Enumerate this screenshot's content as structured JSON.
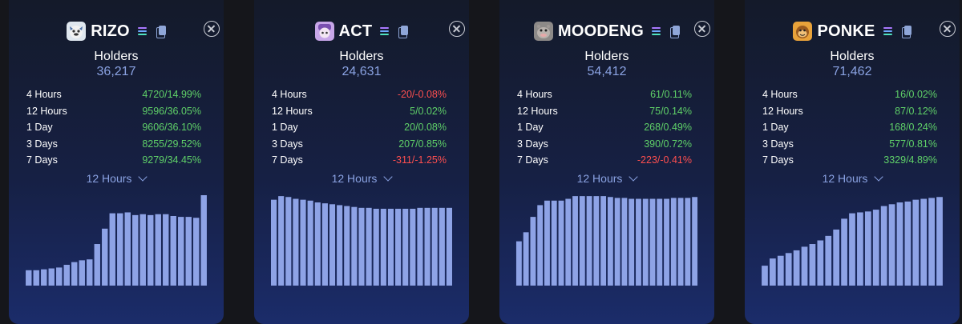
{
  "cards": [
    {
      "ticker": "RIZO",
      "avatar": {
        "icon": "dog-face-icon",
        "color": "#dfe7ef"
      },
      "holders_label": "Holders",
      "holders_value": "36,217",
      "stats": [
        {
          "label": "4 Hours",
          "value": "4720/14.99%",
          "trend": "pos"
        },
        {
          "label": "12 Hours",
          "value": "9596/36.05%",
          "trend": "pos"
        },
        {
          "label": "1 Day",
          "value": "9606/36.10%",
          "trend": "pos"
        },
        {
          "label": "3 Days",
          "value": "8255/29.52%",
          "trend": "pos"
        },
        {
          "label": "7 Days",
          "value": "9279/34.45%",
          "trend": "pos"
        }
      ],
      "period": "12 Hours",
      "chart_data": {
        "type": "bar",
        "ylim": [
          0,
          1
        ],
        "values": [
          0.17,
          0.17,
          0.18,
          0.19,
          0.2,
          0.23,
          0.26,
          0.28,
          0.29,
          0.46,
          0.63,
          0.8,
          0.8,
          0.81,
          0.78,
          0.79,
          0.78,
          0.79,
          0.79,
          0.77,
          0.76,
          0.76,
          0.75,
          1.0
        ]
      }
    },
    {
      "ticker": "ACT",
      "avatar": {
        "icon": "character-icon",
        "color": "#c7a6e8"
      },
      "holders_label": "Holders",
      "holders_value": "24,631",
      "stats": [
        {
          "label": "4 Hours",
          "value": "-20/-0.08%",
          "trend": "neg"
        },
        {
          "label": "12 Hours",
          "value": "5/0.02%",
          "trend": "pos"
        },
        {
          "label": "1 Day",
          "value": "20/0.08%",
          "trend": "pos"
        },
        {
          "label": "3 Days",
          "value": "207/0.85%",
          "trend": "pos"
        },
        {
          "label": "7 Days",
          "value": "-311/-1.25%",
          "trend": "neg"
        }
      ],
      "period": "12 Hours",
      "chart_data": {
        "type": "bar",
        "ylim": [
          0,
          1
        ],
        "values": [
          0.95,
          0.99,
          0.98,
          0.96,
          0.95,
          0.94,
          0.92,
          0.91,
          0.9,
          0.89,
          0.88,
          0.87,
          0.86,
          0.86,
          0.85,
          0.85,
          0.85,
          0.85,
          0.85,
          0.85,
          0.86,
          0.86,
          0.86,
          0.86,
          0.86
        ]
      }
    },
    {
      "ticker": "MOODENG",
      "avatar": {
        "icon": "hippo-icon",
        "color": "#8d8a88"
      },
      "holders_label": "Holders",
      "holders_value": "54,412",
      "stats": [
        {
          "label": "4 Hours",
          "value": "61/0.11%",
          "trend": "pos"
        },
        {
          "label": "12 Hours",
          "value": "75/0.14%",
          "trend": "pos"
        },
        {
          "label": "1 Day",
          "value": "268/0.49%",
          "trend": "pos"
        },
        {
          "label": "3 Days",
          "value": "390/0.72%",
          "trend": "pos"
        },
        {
          "label": "7 Days",
          "value": "-223/-0.41%",
          "trend": "neg"
        }
      ],
      "period": "12 Hours",
      "chart_data": {
        "type": "bar",
        "ylim": [
          0,
          1
        ],
        "values": [
          0.49,
          0.59,
          0.76,
          0.89,
          0.94,
          0.94,
          0.94,
          0.96,
          0.99,
          0.99,
          0.99,
          0.99,
          0.99,
          0.98,
          0.97,
          0.97,
          0.96,
          0.96,
          0.96,
          0.96,
          0.96,
          0.96,
          0.97,
          0.97,
          0.97,
          0.98
        ]
      }
    },
    {
      "ticker": "PONKE",
      "avatar": {
        "icon": "monkey-icon",
        "color": "#e8a23a"
      },
      "holders_label": "Holders",
      "holders_value": "71,462",
      "stats": [
        {
          "label": "4 Hours",
          "value": "16/0.02%",
          "trend": "pos"
        },
        {
          "label": "12 Hours",
          "value": "87/0.12%",
          "trend": "pos"
        },
        {
          "label": "1 Day",
          "value": "168/0.24%",
          "trend": "pos"
        },
        {
          "label": "3 Days",
          "value": "577/0.81%",
          "trend": "pos"
        },
        {
          "label": "7 Days",
          "value": "3329/4.89%",
          "trend": "pos"
        }
      ],
      "period": "12 Hours",
      "chart_data": {
        "type": "bar",
        "ylim": [
          0,
          1
        ],
        "values": [
          0.22,
          0.3,
          0.33,
          0.36,
          0.39,
          0.43,
          0.46,
          0.5,
          0.55,
          0.62,
          0.74,
          0.8,
          0.81,
          0.82,
          0.84,
          0.88,
          0.9,
          0.92,
          0.93,
          0.95,
          0.96,
          0.97,
          0.98
        ]
      }
    }
  ]
}
